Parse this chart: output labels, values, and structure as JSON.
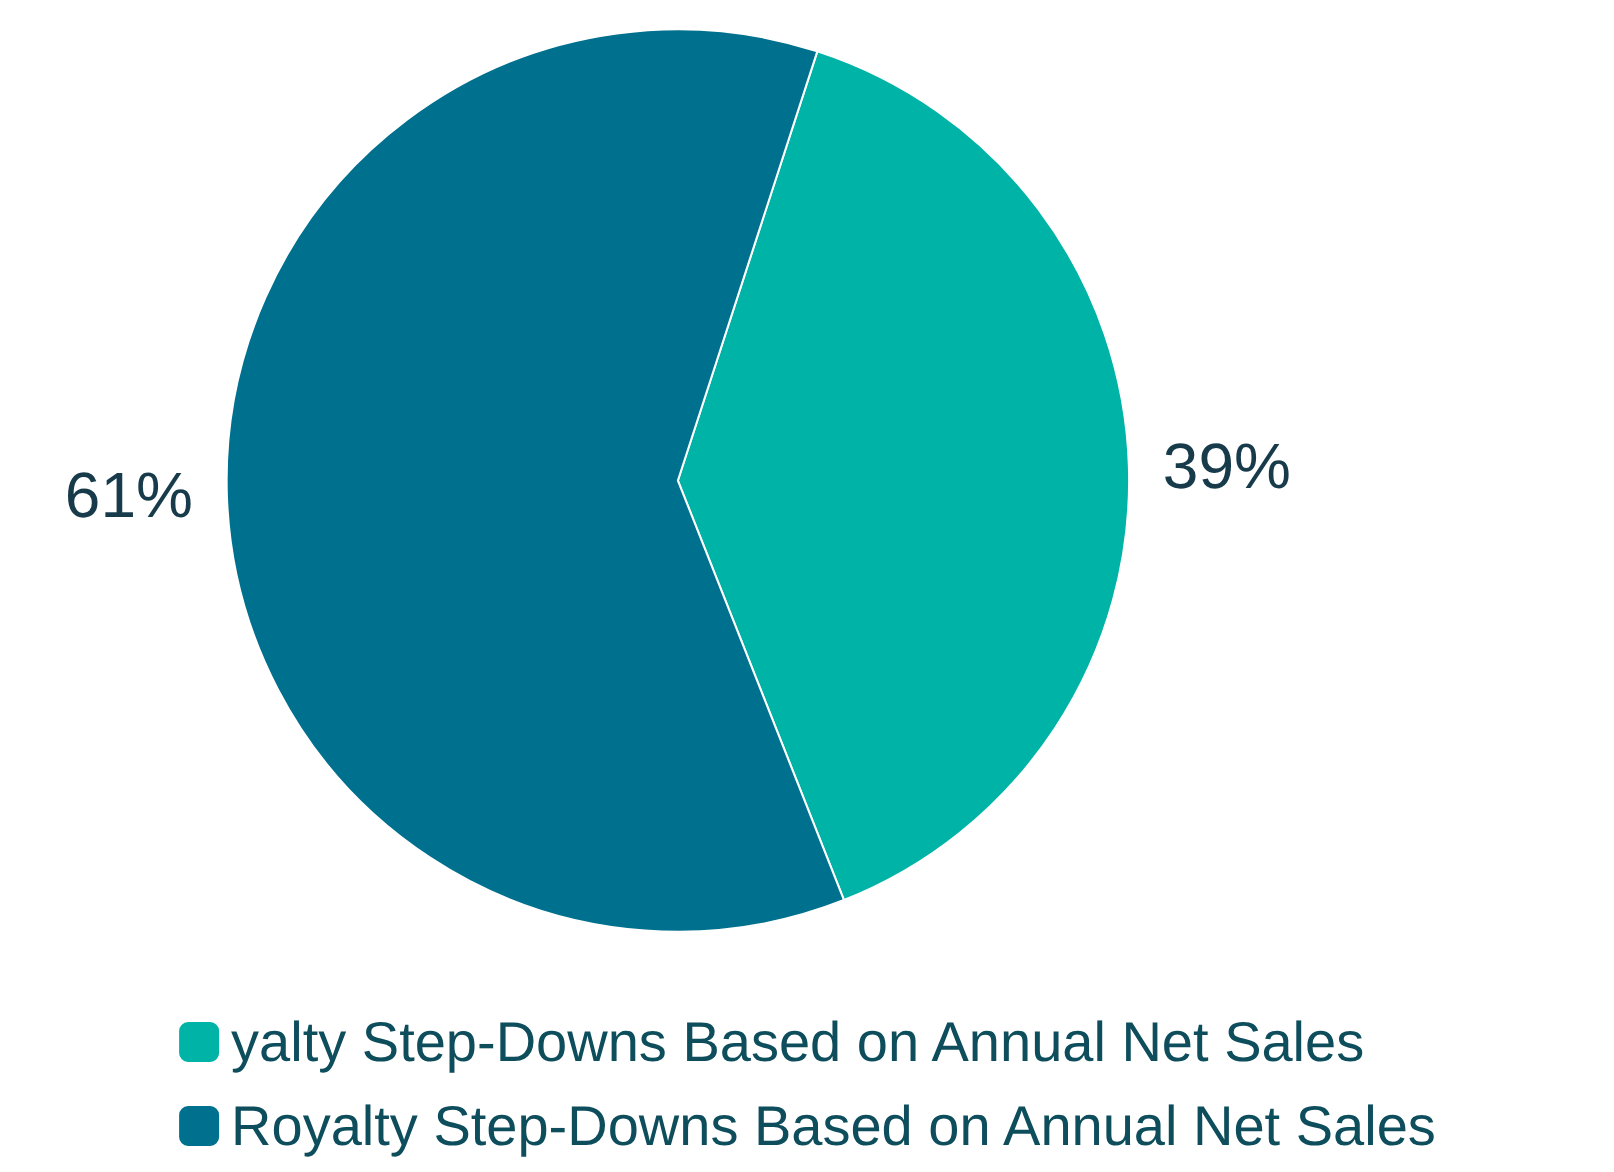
{
  "chart_data": {
    "type": "pie",
    "categories": [
      "yalty Step-Downs Based on Annual Net Sales",
      "Royalty Step-Downs Based on Annual Net Sales"
    ],
    "values": [
      39,
      61
    ],
    "colors": [
      "#00b3a7",
      "#00708f"
    ],
    "value_labels": [
      "39%",
      "61%"
    ],
    "legend": "bottom"
  }
}
